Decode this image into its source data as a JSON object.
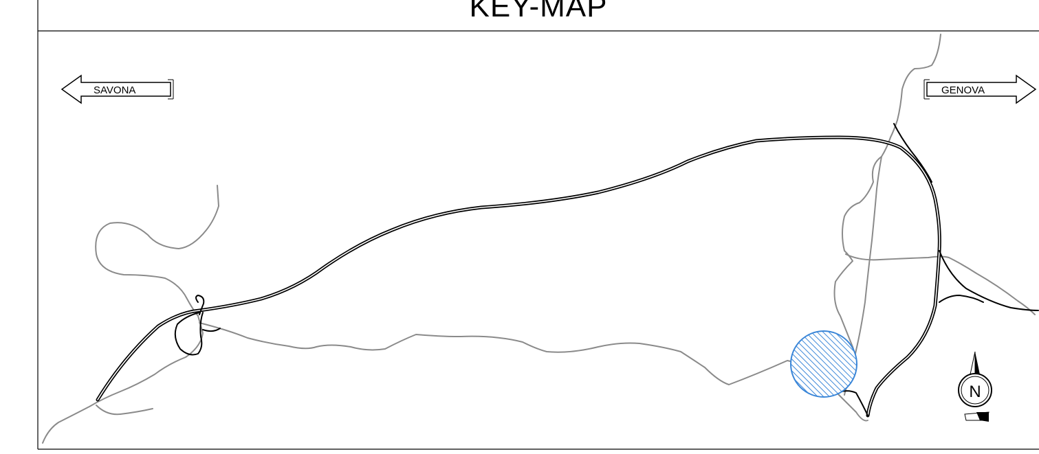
{
  "title": "KEY-MAP",
  "directions": {
    "west": {
      "label": "SAVONA",
      "icon": "left-arrow-icon"
    },
    "east": {
      "label": "GENOVA",
      "icon": "right-arrow-icon"
    }
  },
  "north_arrow": {
    "letter": "N",
    "icon": "north-arrow-icon"
  },
  "colors": {
    "highway": "#000000",
    "secondary_road": "#8a8a8a",
    "highlight": "#3a86d8",
    "frame": "#000000"
  },
  "highlight_area": {
    "icon": "hatched-circle-location-marker"
  }
}
